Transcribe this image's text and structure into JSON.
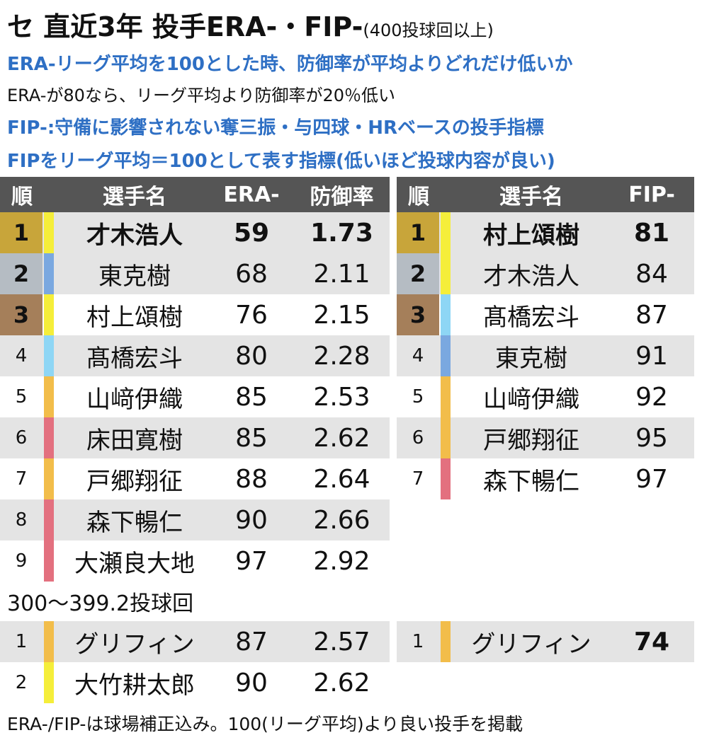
{
  "title": {
    "main": "セ 直近3年 投手ERA-・FIP-",
    "sub": "(400投球回以上)"
  },
  "desc": [
    "ERA-リーグ平均を100とした時、防御率が平均よりどれだけ低いか",
    "ERA-が80なら、リーグ平均より防御率が20％低い",
    "FIP-:守備に影響されない奪三振・与四球・HRベースの投手指標",
    "FIPをリーグ平均＝100として表す指標(低いほど投球内容が良い)"
  ],
  "era_table": {
    "headers": [
      "順",
      "選手名",
      "ERA-",
      "防御率"
    ],
    "rows": [
      {
        "rank": "1",
        "name": "才木浩人",
        "era_minus": "59",
        "era": "1.73"
      },
      {
        "rank": "2",
        "name": "東克樹",
        "era_minus": "68",
        "era": "2.11"
      },
      {
        "rank": "3",
        "name": "村上頌樹",
        "era_minus": "76",
        "era": "2.15"
      },
      {
        "rank": "4",
        "name": "髙橋宏斗",
        "era_minus": "80",
        "era": "2.28"
      },
      {
        "rank": "5",
        "name": "山﨑伊織",
        "era_minus": "85",
        "era": "2.53"
      },
      {
        "rank": "6",
        "name": "床田寛樹",
        "era_minus": "85",
        "era": "2.62"
      },
      {
        "rank": "7",
        "name": "戸郷翔征",
        "era_minus": "88",
        "era": "2.64"
      },
      {
        "rank": "8",
        "name": "森下暢仁",
        "era_minus": "90",
        "era": "2.66"
      },
      {
        "rank": "9",
        "name": "大瀬良大地",
        "era_minus": "97",
        "era": "2.92"
      }
    ]
  },
  "fip_table": {
    "headers": [
      "順",
      "選手名",
      "FIP-"
    ],
    "rows": [
      {
        "rank": "1",
        "name": "村上頌樹",
        "fip_minus": "81"
      },
      {
        "rank": "2",
        "name": "才木浩人",
        "fip_minus": "84"
      },
      {
        "rank": "3",
        "name": "髙橋宏斗",
        "fip_minus": "87"
      },
      {
        "rank": "4",
        "name": "東克樹",
        "fip_minus": "91"
      },
      {
        "rank": "5",
        "name": "山﨑伊織",
        "fip_minus": "92"
      },
      {
        "rank": "6",
        "name": "戸郷翔征",
        "fip_minus": "95"
      },
      {
        "rank": "7",
        "name": "森下暢仁",
        "fip_minus": "97"
      }
    ]
  },
  "sub_section": {
    "label": "300〜399.2投球回",
    "era_rows": [
      {
        "rank": "1",
        "name": "グリフィン",
        "era_minus": "87",
        "era": "2.57"
      },
      {
        "rank": "2",
        "name": "大竹耕太郎",
        "era_minus": "90",
        "era": "2.62"
      }
    ],
    "fip_rows": [
      {
        "rank": "1",
        "name": "グリフィン",
        "fip_minus": "74"
      }
    ]
  },
  "footer": "ERA-/FIP-は球場補正込み。100(リーグ平均)より良い投手を掲載",
  "colors": {
    "header_bg": "#555555",
    "stripe": "#e4e4e4",
    "text_blue": "#2e6fc4",
    "gold": "#c8a53a",
    "silver": "#b5bcc3",
    "bronze": "#a57f5a",
    "team_tigers": "#f5ee3a",
    "team_baystars": "#7aa8e0",
    "team_dragons": "#8ed6f5",
    "team_giants": "#f2bd4a",
    "team_carp": "#e3707f"
  }
}
